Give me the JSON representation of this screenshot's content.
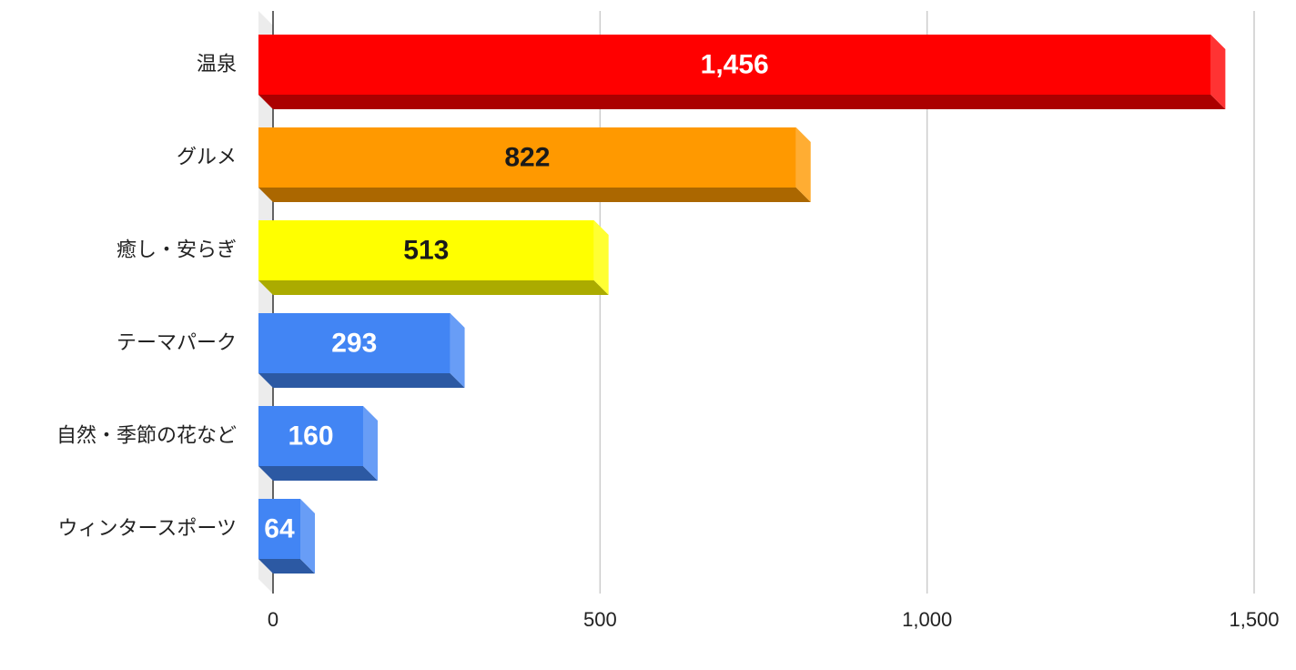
{
  "chart_data": {
    "type": "bar",
    "orientation": "horizontal",
    "style": "3d",
    "title": "",
    "xlabel": "",
    "ylabel": "",
    "categories": [
      "温泉",
      "グルメ",
      "癒し・安らぎ",
      "テーマパーク",
      "自然・季節の花など",
      "ウィンタースポーツ"
    ],
    "values": [
      1456,
      822,
      513,
      293,
      160,
      64
    ],
    "value_labels": [
      "1,456",
      "822",
      "513",
      "293",
      "160",
      "64"
    ],
    "xlim": [
      0,
      1500
    ],
    "x_ticks": [
      0,
      500,
      1000,
      1500
    ],
    "x_tick_labels": [
      "0",
      "500",
      "1,000",
      "1,500"
    ],
    "grid": true,
    "legend": "none",
    "bar_colors": [
      "#ff0000",
      "#ff9900",
      "#ffff00",
      "#4285f4",
      "#4285f4",
      "#4285f4"
    ],
    "value_label_colors": [
      "#ffffff",
      "#1a1a1a",
      "#1a1a1a",
      "#ffffff",
      "#ffffff",
      "#ffffff"
    ]
  }
}
